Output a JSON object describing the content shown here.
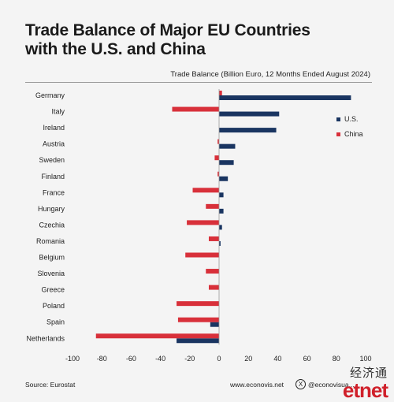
{
  "header": {
    "title_line1": "Trade Balance of Major EU Countries",
    "title_line2": "with the U.S. and China",
    "subtitle": "Trade Balance (Billion Euro, 12 Months Ended August 2024)"
  },
  "footer": {
    "source": "Source: Eurostat",
    "website": "www.econovis.net",
    "handle": "@econovisua...",
    "x_icon": "x-logo-icon"
  },
  "watermark": {
    "cn": "经济通",
    "en": "etnet"
  },
  "colors": {
    "us": "#1a3561",
    "china": "#d8303a"
  },
  "chart_data": {
    "type": "bar",
    "orientation": "horizontal",
    "categories": [
      "Germany",
      "Italy",
      "Ireland",
      "Austria",
      "Sweden",
      "Finland",
      "France",
      "Hungary",
      "Czechia",
      "Romania",
      "Belgium",
      "Slovenia",
      "Greece",
      "Poland",
      "Spain",
      "Netherlands"
    ],
    "series": [
      {
        "name": "U.S.",
        "color": "#1a3561",
        "values": [
          90,
          41,
          39,
          11,
          10,
          6,
          3,
          3,
          2,
          1,
          0,
          0,
          0,
          0,
          -6,
          -29
        ]
      },
      {
        "name": "China",
        "color": "#d8303a",
        "values": [
          2,
          -32,
          0,
          -1,
          -3,
          -1,
          -18,
          -9,
          -22,
          -7,
          -23,
          -9,
          -7,
          -29,
          -28,
          -84
        ]
      }
    ],
    "xlim": [
      -100,
      100
    ],
    "xticks": [
      -100,
      -80,
      -60,
      -40,
      -20,
      0,
      20,
      40,
      60,
      80,
      100
    ],
    "grid": false,
    "legend_position": "right"
  }
}
